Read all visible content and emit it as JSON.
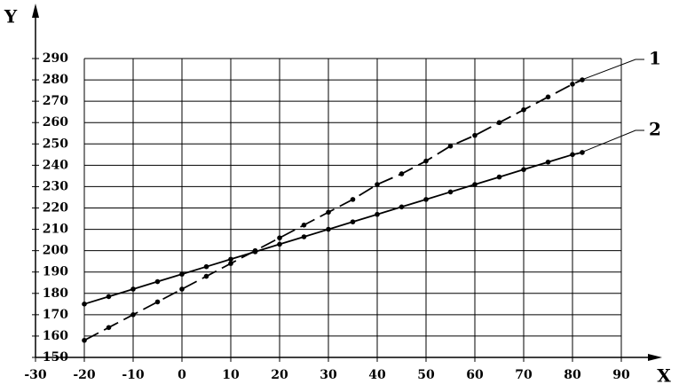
{
  "chart_data": {
    "type": "line",
    "x_label": "X",
    "y_label": "Y",
    "x": [
      -20,
      -15,
      -10,
      -5,
      0,
      5,
      10,
      15,
      20,
      25,
      30,
      35,
      40,
      45,
      50,
      55,
      60,
      65,
      70,
      75,
      80,
      82
    ],
    "series": [
      {
        "name": "1",
        "color": "#000000",
        "dashed": true,
        "values": [
          158,
          164,
          170,
          176,
          182,
          188,
          194,
          200,
          206,
          212,
          218,
          224,
          231,
          236,
          242,
          249,
          254,
          260,
          266,
          272,
          278,
          280
        ]
      },
      {
        "name": "2",
        "color": "#000000",
        "dashed": false,
        "values": [
          175,
          178.5,
          182,
          185.5,
          189,
          192.5,
          196,
          199.5,
          203,
          206.5,
          210,
          213.5,
          217,
          220.5,
          224,
          227.5,
          231,
          234.5,
          238,
          241.5,
          245,
          246
        ]
      }
    ],
    "xlim": [
      -30,
      90
    ],
    "xticks": [
      -30,
      -20,
      -10,
      0,
      10,
      20,
      30,
      40,
      50,
      60,
      70,
      80,
      90
    ],
    "ylim": [
      150,
      290
    ],
    "yticks": [
      150,
      160,
      170,
      180,
      190,
      200,
      210,
      220,
      230,
      240,
      250,
      260,
      270,
      280,
      290
    ],
    "grid": true
  }
}
